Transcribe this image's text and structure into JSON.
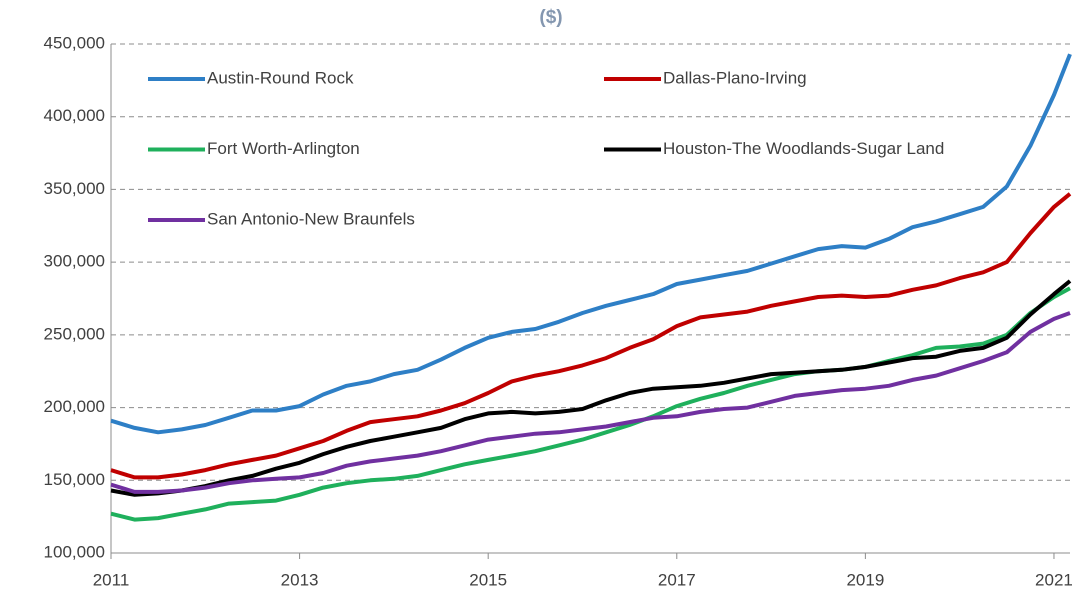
{
  "chart_data": {
    "type": "line",
    "title": "($)",
    "x": [
      2011,
      2011.25,
      2011.5,
      2011.75,
      2012,
      2012.25,
      2012.5,
      2012.75,
      2013,
      2013.25,
      2013.5,
      2013.75,
      2014,
      2014.25,
      2014.5,
      2014.75,
      2015,
      2015.25,
      2015.5,
      2015.75,
      2016,
      2016.25,
      2016.5,
      2016.75,
      2017,
      2017.25,
      2017.5,
      2017.75,
      2018,
      2018.25,
      2018.5,
      2018.75,
      2019,
      2019.25,
      2019.5,
      2019.75,
      2020,
      2020.25,
      2020.5,
      2020.75,
      2021,
      2021.17
    ],
    "series": [
      {
        "name": "Austin-Round Rock",
        "color": "#2e7fc6",
        "values": [
          191000,
          186000,
          183000,
          185000,
          188000,
          193000,
          198000,
          198000,
          201000,
          209000,
          215000,
          218000,
          223000,
          226000,
          233000,
          241000,
          248000,
          252000,
          254000,
          259000,
          265000,
          270000,
          274000,
          278000,
          285000,
          288000,
          291000,
          294000,
          299000,
          304000,
          309000,
          311000,
          310000,
          316000,
          324000,
          328000,
          333000,
          338000,
          352000,
          380000,
          415000,
          443000
        ]
      },
      {
        "name": "Dallas-Plano-Irving",
        "color": "#c00000",
        "values": [
          157000,
          152000,
          152000,
          154000,
          157000,
          161000,
          164000,
          167000,
          172000,
          177000,
          184000,
          190000,
          192000,
          194000,
          198000,
          203000,
          210000,
          218000,
          222000,
          225000,
          229000,
          234000,
          241000,
          247000,
          256000,
          262000,
          264000,
          266000,
          270000,
          273000,
          276000,
          277000,
          276000,
          277000,
          281000,
          284000,
          289000,
          293000,
          300000,
          320000,
          338000,
          347000
        ]
      },
      {
        "name": "Fort Worth-Arlington",
        "color": "#1fb05c",
        "values": [
          127000,
          123000,
          124000,
          127000,
          130000,
          134000,
          135000,
          136000,
          140000,
          145000,
          148000,
          150000,
          151000,
          153000,
          157000,
          161000,
          164000,
          167000,
          170000,
          174000,
          178000,
          183000,
          188000,
          194000,
          201000,
          206000,
          210000,
          215000,
          219000,
          223000,
          225000,
          226000,
          228000,
          232000,
          236000,
          241000,
          242000,
          244000,
          250000,
          265000,
          276000,
          282000
        ]
      },
      {
        "name": "Houston-The Woodlands-Sugar Land",
        "color": "#000000",
        "values": [
          143000,
          140000,
          141000,
          143000,
          146000,
          150000,
          153000,
          158000,
          162000,
          168000,
          173000,
          177000,
          180000,
          183000,
          186000,
          192000,
          196000,
          197000,
          196000,
          197000,
          199000,
          205000,
          210000,
          213000,
          214000,
          215000,
          217000,
          220000,
          223000,
          224000,
          225000,
          226000,
          228000,
          231000,
          234000,
          235000,
          239000,
          241000,
          248000,
          264000,
          278000,
          287000
        ]
      },
      {
        "name": "San Antonio-New Braunfels",
        "color": "#7030a0",
        "values": [
          147000,
          142000,
          142000,
          143000,
          145000,
          148000,
          150000,
          151000,
          152000,
          155000,
          160000,
          163000,
          165000,
          167000,
          170000,
          174000,
          178000,
          180000,
          182000,
          183000,
          185000,
          187000,
          190000,
          193000,
          194000,
          197000,
          199000,
          200000,
          204000,
          208000,
          210000,
          212000,
          213000,
          215000,
          219000,
          222000,
          227000,
          232000,
          238000,
          252000,
          261000,
          265000
        ]
      }
    ],
    "xlim": [
      2011,
      2021.17
    ],
    "xticks": [
      2011,
      2013,
      2015,
      2017,
      2019,
      2021
    ],
    "ylim": [
      100000,
      450000
    ],
    "yticks": [
      {
        "value": 100000,
        "label": "100,000"
      },
      {
        "value": 150000,
        "label": "150,000"
      },
      {
        "value": 200000,
        "label": "200,000"
      },
      {
        "value": 250000,
        "label": "250,000"
      },
      {
        "value": 300000,
        "label": "300,000"
      },
      {
        "value": 350000,
        "label": "350,000"
      },
      {
        "value": 400000,
        "label": "400,000"
      },
      {
        "value": 450000,
        "label": "450,000"
      }
    ],
    "grid": true
  }
}
